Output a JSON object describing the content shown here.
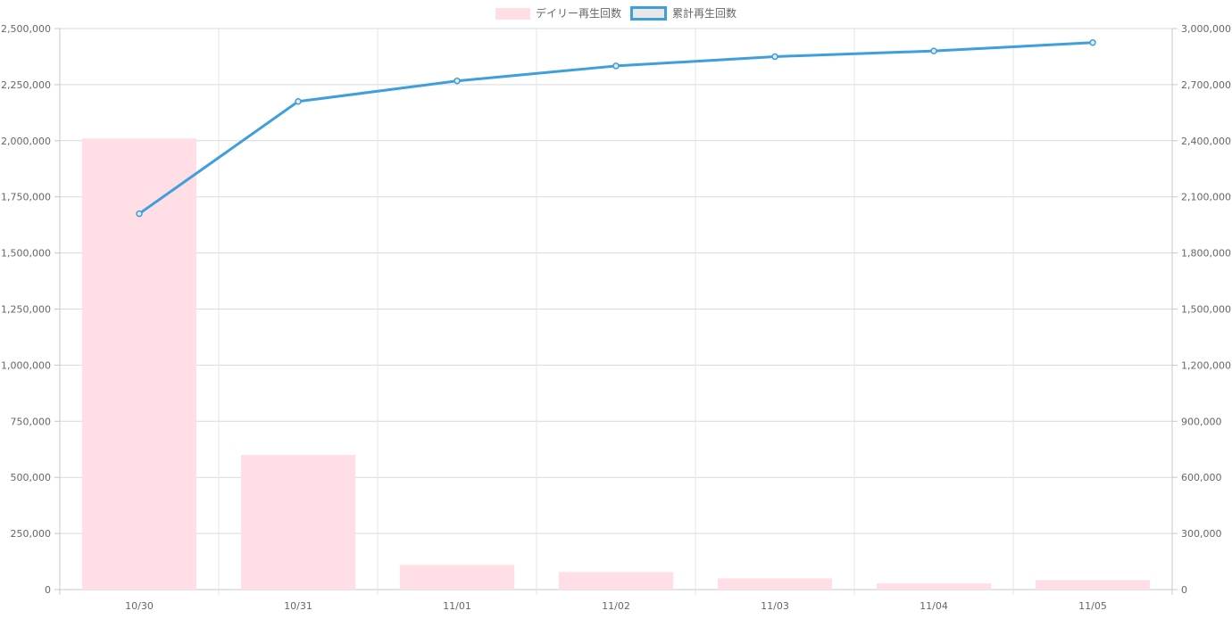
{
  "chart_data": {
    "type": "bar",
    "categories": [
      "10/30",
      "10/31",
      "11/01",
      "11/02",
      "11/03",
      "11/04",
      "11/05"
    ],
    "series": [
      {
        "name": "デイリー再生回数",
        "type": "bar",
        "axis": "left",
        "color": "#ffdfe5",
        "values": [
          2010000,
          600000,
          110000,
          78000,
          50000,
          28000,
          42000
        ]
      },
      {
        "name": "累計再生回数",
        "type": "line",
        "axis": "right",
        "color": "#3e9fdc",
        "values": [
          2010000,
          2610000,
          2720000,
          2800000,
          2850000,
          2880000,
          2925000
        ]
      }
    ],
    "y_left": {
      "min": 0,
      "max": 2500000,
      "ticks": [
        "0",
        "250,000",
        "500,000",
        "750,000",
        "1,000,000",
        "1,250,000",
        "1,500,000",
        "1,750,000",
        "2,000,000",
        "2,250,000",
        "2,500,000"
      ]
    },
    "y_right": {
      "min": 0,
      "max": 3000000,
      "ticks": [
        "0",
        "300,000",
        "600,000",
        "900,000",
        "1,200,000",
        "1,500,000",
        "1,800,000",
        "2,100,000",
        "2,400,000",
        "2,700,000",
        "3,000,000"
      ]
    },
    "legend_position": "top",
    "grid": true,
    "title": "",
    "xlabel": "",
    "ylabel": ""
  }
}
